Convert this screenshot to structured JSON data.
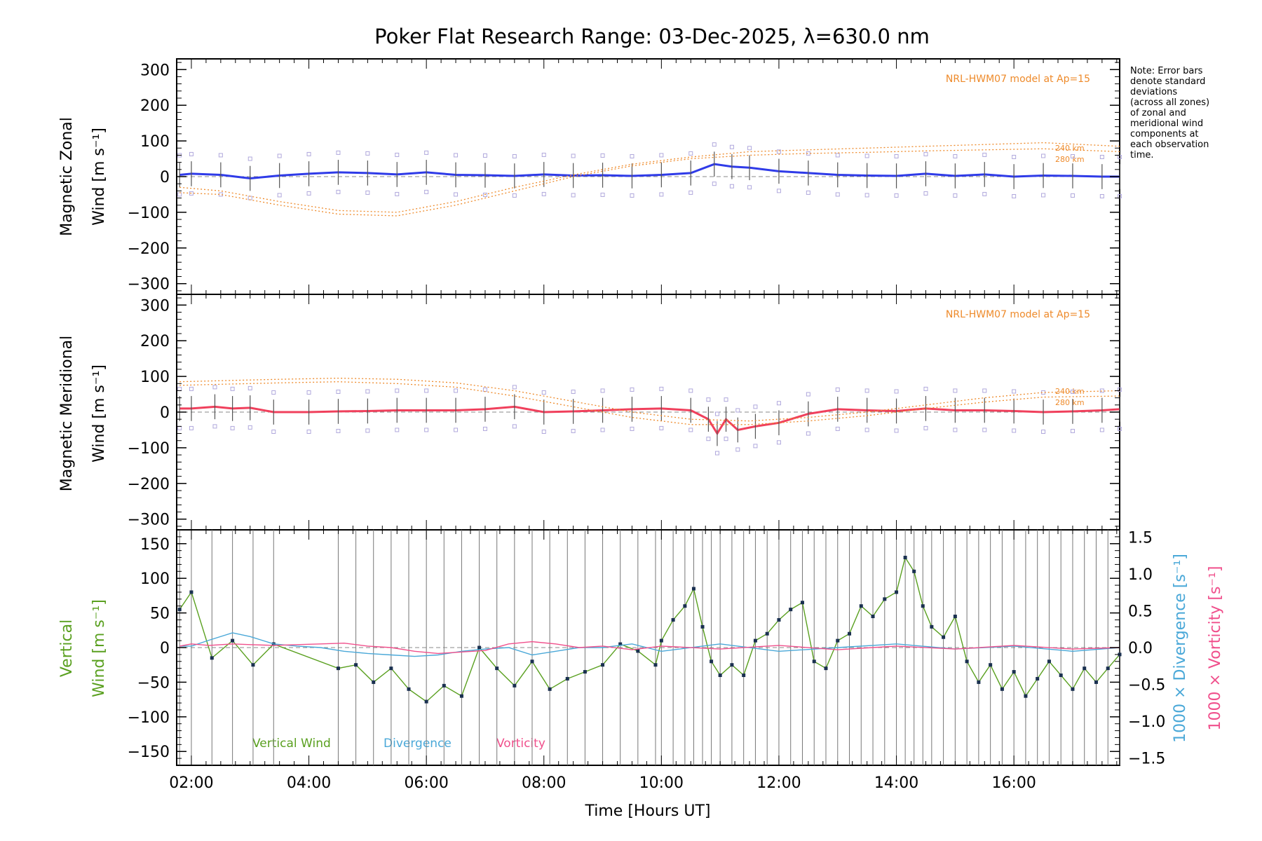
{
  "title": "Poker Flat Research Range: 03-Dec-2025, λ=630.0 nm",
  "note": {
    "lines": [
      "Note: Error bars",
      "denote standard",
      "deviations",
      "(across all zones)",
      "of zonal and",
      "meridional wind",
      "components at",
      "each observation",
      "time."
    ]
  },
  "colors": {
    "zonal": "#2f3be8",
    "zonal_overlay": "#4ab0d8",
    "meridional": "#f0405c",
    "model": "#ee8a2a",
    "scatter": "#b0a8dc",
    "vertical": "#5aa020",
    "divergence": "#4aa8d8",
    "vorticity": "#f0508c",
    "axis": "#000000"
  },
  "chart_data": [
    {
      "type": "line",
      "panel": "zonal",
      "ylabel": [
        "Magnetic Zonal",
        "Wind [m s⁻¹]"
      ],
      "ylim": [
        -330,
        330
      ],
      "yticks": [
        "300",
        "200",
        "100",
        "0",
        "−100",
        "−200",
        "−300"
      ],
      "model_label": "NRL-HWM07 model at Ap=15",
      "model_alt_labels": [
        "240 km",
        "280 km"
      ],
      "series": [
        {
          "name": "Zonal wind",
          "x": [
            1.8,
            2.0,
            2.5,
            3.0,
            3.5,
            4.0,
            4.5,
            5.0,
            5.5,
            6.0,
            6.5,
            7.0,
            7.5,
            8.0,
            8.5,
            9.0,
            9.5,
            10.0,
            10.5,
            10.9,
            11.2,
            11.5,
            12.0,
            12.5,
            13.0,
            13.5,
            14.0,
            14.5,
            15.0,
            15.5,
            16.0,
            16.5,
            17.0,
            17.5,
            17.8
          ],
          "y": [
            5,
            8,
            5,
            -5,
            3,
            8,
            12,
            10,
            6,
            12,
            5,
            4,
            2,
            6,
            3,
            4,
            2,
            5,
            10,
            35,
            28,
            25,
            15,
            10,
            5,
            3,
            2,
            8,
            2,
            6,
            0,
            3,
            2,
            0,
            0
          ]
        },
        {
          "name": "NRL-HWM07 240 km",
          "x": [
            1.8,
            2.5,
            3.5,
            4.5,
            5.5,
            6.5,
            7.5,
            8.5,
            9.5,
            10.5,
            11.5,
            12.5,
            13.5,
            14.5,
            15.5,
            16.5,
            17.8
          ],
          "y": [
            -30,
            -40,
            -70,
            -95,
            -100,
            -70,
            -30,
            5,
            35,
            55,
            70,
            75,
            80,
            85,
            90,
            95,
            85
          ]
        },
        {
          "name": "NRL-HWM07 280 km",
          "x": [
            1.8,
            2.5,
            3.5,
            4.5,
            5.5,
            6.5,
            7.5,
            8.5,
            9.5,
            10.5,
            11.5,
            12.5,
            13.5,
            14.5,
            15.5,
            16.5,
            17.8
          ],
          "y": [
            -45,
            -50,
            -80,
            -105,
            -110,
            -80,
            -40,
            0,
            30,
            50,
            60,
            65,
            68,
            72,
            75,
            78,
            70
          ]
        }
      ]
    },
    {
      "type": "line",
      "panel": "meridional",
      "ylabel": [
        "Magnetic Meridional",
        "Wind [m s⁻¹]"
      ],
      "ylim": [
        -330,
        330
      ],
      "yticks": [
        "300",
        "200",
        "100",
        "0",
        "−100",
        "−200",
        "−300"
      ],
      "model_label": "NRL-HWM07 model at Ap=15",
      "model_alt_labels": [
        "240 km",
        "280 km"
      ],
      "series": [
        {
          "name": "Meridional wind",
          "x": [
            1.8,
            2.0,
            2.4,
            2.7,
            3.0,
            3.4,
            4.0,
            4.5,
            5.0,
            5.5,
            6.0,
            6.5,
            7.0,
            7.5,
            8.0,
            8.5,
            9.0,
            9.5,
            10.0,
            10.5,
            10.8,
            10.95,
            11.1,
            11.3,
            11.6,
            12.0,
            12.5,
            13.0,
            13.5,
            14.0,
            14.5,
            15.0,
            15.5,
            16.0,
            16.5,
            17.0,
            17.5,
            17.8
          ],
          "y": [
            10,
            10,
            15,
            10,
            12,
            0,
            0,
            2,
            3,
            5,
            5,
            5,
            8,
            15,
            0,
            2,
            5,
            8,
            10,
            5,
            -20,
            -60,
            -20,
            -50,
            -40,
            -30,
            -5,
            8,
            5,
            3,
            10,
            5,
            5,
            3,
            0,
            2,
            5,
            8
          ]
        },
        {
          "name": "NRL-HWM07 240 km",
          "x": [
            1.8,
            2.5,
            3.5,
            4.5,
            5.5,
            6.5,
            7.5,
            8.5,
            9.5,
            10.5,
            11.5,
            12.5,
            13.5,
            14.5,
            15.5,
            16.5,
            17.8
          ],
          "y": [
            85,
            88,
            92,
            95,
            92,
            82,
            60,
            30,
            0,
            -20,
            -25,
            -15,
            0,
            20,
            40,
            55,
            60
          ]
        },
        {
          "name": "NRL-HWM07 280 km",
          "x": [
            1.8,
            2.5,
            3.5,
            4.5,
            5.5,
            6.5,
            7.5,
            8.5,
            9.5,
            10.5,
            11.5,
            12.5,
            13.5,
            14.5,
            15.5,
            16.5,
            17.8
          ],
          "y": [
            75,
            78,
            82,
            85,
            80,
            70,
            45,
            15,
            -15,
            -35,
            -35,
            -25,
            -10,
            10,
            28,
            42,
            45
          ]
        }
      ]
    },
    {
      "type": "line",
      "panel": "vertical",
      "ylabel_left": [
        "Vertical",
        "Wind [m s⁻¹]"
      ],
      "ylabel_right_1": "1000 × Divergence [s⁻¹]",
      "ylabel_right_2": "1000 × Vorticity [s⁻¹]",
      "ylim": [
        -170,
        170
      ],
      "ylim_right": [
        -1.6,
        1.6
      ],
      "yticks": [
        "150",
        "100",
        "50",
        "0",
        "−50",
        "−100",
        "−150"
      ],
      "yticks_right": [
        "1.5",
        "1.0",
        "0.5",
        "0.0",
        "−0.5",
        "−1.0",
        "−1.5"
      ],
      "legend": [
        "Vertical Wind",
        "Divergence",
        "Vorticity"
      ],
      "series": [
        {
          "name": "Vertical Wind",
          "x": [
            1.8,
            2.0,
            2.35,
            2.7,
            3.05,
            3.4,
            4.5,
            4.8,
            5.1,
            5.4,
            5.7,
            6.0,
            6.3,
            6.6,
            6.9,
            7.2,
            7.5,
            7.8,
            8.1,
            8.4,
            8.7,
            9.0,
            9.3,
            9.6,
            9.9,
            10.0,
            10.2,
            10.4,
            10.55,
            10.7,
            10.85,
            11.0,
            11.2,
            11.4,
            11.6,
            11.8,
            12.0,
            12.2,
            12.4,
            12.6,
            12.8,
            13.0,
            13.2,
            13.4,
            13.6,
            13.8,
            14.0,
            14.15,
            14.3,
            14.45,
            14.6,
            14.8,
            15.0,
            15.2,
            15.4,
            15.6,
            15.8,
            16.0,
            16.2,
            16.4,
            16.6,
            16.8,
            17.0,
            17.2,
            17.4,
            17.6,
            17.8
          ],
          "y": [
            55,
            80,
            -15,
            10,
            -25,
            5,
            -30,
            -25,
            -50,
            -30,
            -60,
            -78,
            -55,
            -70,
            0,
            -30,
            -55,
            -20,
            -60,
            -45,
            -35,
            -25,
            5,
            -5,
            -25,
            10,
            40,
            60,
            85,
            30,
            -20,
            -40,
            -25,
            -40,
            10,
            20,
            40,
            55,
            65,
            -20,
            -30,
            10,
            20,
            60,
            45,
            70,
            80,
            130,
            110,
            60,
            30,
            15,
            45,
            -20,
            -50,
            -25,
            -60,
            -35,
            -70,
            -45,
            -20,
            -40,
            -60,
            -30,
            -50,
            -30,
            -10
          ]
        },
        {
          "name": "Divergence",
          "x": [
            1.8,
            2.0,
            2.3,
            2.7,
            3.0,
            3.4,
            3.8,
            4.2,
            4.6,
            5.0,
            5.4,
            5.8,
            6.2,
            6.6,
            7.0,
            7.4,
            7.8,
            8.2,
            8.6,
            9.0,
            9.5,
            10.0,
            11.0,
            12.0,
            13.0,
            14.0,
            15.0,
            16.0,
            17.0,
            17.8
          ],
          "y": [
            0.02,
            0.02,
            0.1,
            0.2,
            0.15,
            0.05,
            0.02,
            0,
            -0.05,
            -0.08,
            -0.1,
            -0.12,
            -0.1,
            -0.05,
            -0.02,
            0,
            -0.1,
            -0.05,
            0,
            0,
            0.05,
            -0.05,
            0.05,
            -0.05,
            0,
            0.05,
            -0.02,
            0.02,
            -0.05,
            0
          ]
        },
        {
          "name": "Vorticity",
          "x": [
            1.8,
            2.0,
            2.3,
            2.7,
            3.0,
            3.4,
            3.8,
            4.2,
            4.6,
            5.0,
            5.4,
            5.8,
            6.2,
            6.6,
            7.0,
            7.4,
            7.8,
            8.2,
            8.6,
            9.0,
            9.5,
            10.0,
            11.0,
            12.0,
            13.0,
            14.0,
            15.0,
            16.0,
            17.0,
            17.8
          ],
          "y": [
            0.02,
            0.05,
            0.03,
            0.05,
            0.04,
            0.03,
            0.04,
            0.05,
            0.06,
            0.02,
            0,
            -0.05,
            -0.08,
            -0.06,
            -0.04,
            0.05,
            0.08,
            0.05,
            0,
            0.02,
            -0.03,
            0.02,
            -0.02,
            0.03,
            -0.03,
            0.02,
            -0.02,
            0.03,
            -0.02,
            0
          ]
        }
      ]
    }
  ],
  "xaxis": {
    "label": "Time [Hours UT]",
    "range": [
      1.75,
      17.8
    ],
    "ticks": [
      2,
      4,
      6,
      8,
      10,
      12,
      14,
      16
    ],
    "tick_labels": [
      "02:00",
      "04:00",
      "06:00",
      "08:00",
      "10:00",
      "12:00",
      "14:00",
      "16:00"
    ]
  }
}
